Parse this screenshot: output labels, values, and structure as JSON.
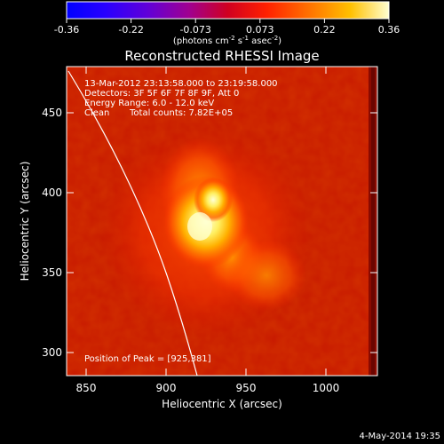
{
  "colorbar": {
    "ticks": [
      "-0.36",
      "-0.22",
      "-0.073",
      "0.073",
      "0.22",
      "0.36"
    ],
    "unit_prefix": "(photons cm",
    "unit_exp1": "-2",
    "unit_mid": " s",
    "unit_exp2": "-1",
    "unit_mid2": " asec",
    "unit_exp3": "-2",
    "unit_suffix": ")"
  },
  "title": "Reconstructed RHESSI Image",
  "info": {
    "time_range": "13-Mar-2012 23:13:58.000 to 23:19:58.000",
    "detectors": "Detectors: 3F 5F 6F 7F 8F 9F, Att 0",
    "energy": "Energy Range: 6.0 - 12.0 keV",
    "clean": "Clean",
    "total_counts": "Total counts: 7.82E+05"
  },
  "peak": "Position of Peak = [925,381]",
  "axes": {
    "xlabel": "Heliocentric X (arcsec)",
    "ylabel": "Heliocentric Y (arcsec)",
    "xticks": [
      "850",
      "900",
      "950",
      "1000"
    ],
    "yticks": [
      "450",
      "400",
      "350",
      "300"
    ]
  },
  "timestamp": "4-May-2014 19:35",
  "colors": {
    "background": "#000000",
    "map_base": "#c81400",
    "peak_core": "#ffffc0"
  }
}
